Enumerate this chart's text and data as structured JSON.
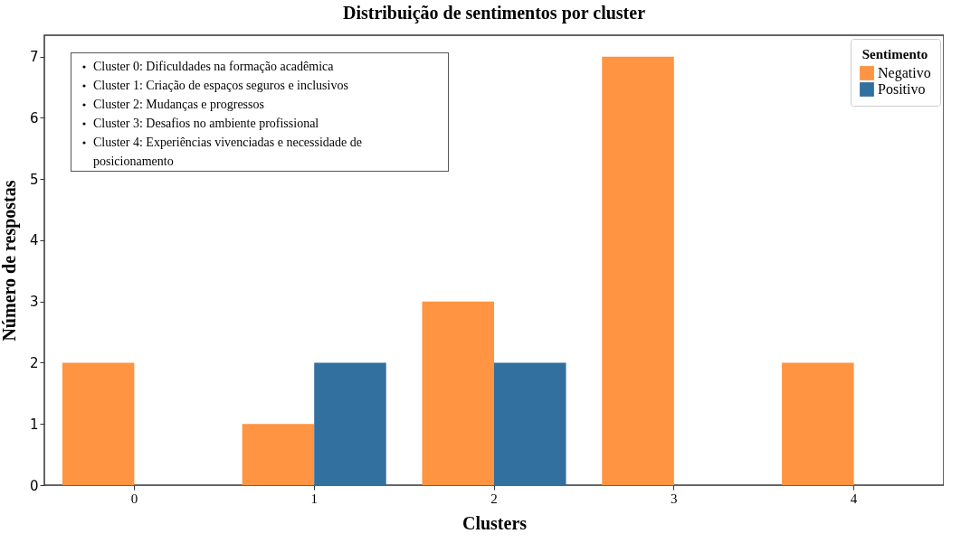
{
  "chart_data": {
    "type": "bar",
    "title": "Distribuição de sentimentos por cluster",
    "xlabel": "Clusters",
    "ylabel": "Número de respostas",
    "legend_title": "Sentimento",
    "categories": [
      "0",
      "1",
      "2",
      "3",
      "4"
    ],
    "series": [
      {
        "name": "Negativo",
        "color": "#ff9442",
        "values": [
          2,
          1,
          3,
          7,
          2
        ]
      },
      {
        "name": "Positivo",
        "color": "#32709f",
        "values": [
          0,
          2,
          2,
          0,
          0
        ]
      }
    ],
    "ylim": [
      0,
      7.35
    ],
    "yticks": [
      0,
      1,
      2,
      3,
      4,
      5,
      6,
      7
    ],
    "grid": false,
    "legend": "top right",
    "annotations": [
      "Cluster 0: Dificuldades na formação acadêmica",
      "Cluster 1: Criação de espaços seguros e inclusivos",
      "Cluster 2: Mudanças e progressos",
      "Cluster 3: Desafios no ambiente profissional",
      "Cluster 4: Experiências vivenciadas e necessidade de posicionamento"
    ]
  }
}
